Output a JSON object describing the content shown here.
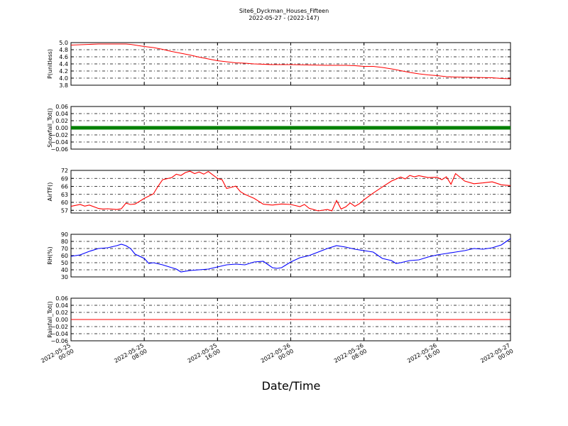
{
  "figure": {
    "title": "Site6_Dyckman_Houses_Fifteen",
    "subtitle": "2022-05-27 - (2022-147)",
    "xlabel": "Date/Time",
    "x_ticks": [
      {
        "line1": "2022-05-25",
        "line2": "00:00",
        "hour": 0
      },
      {
        "line1": "2022-05-25",
        "line2": "08:00",
        "hour": 8
      },
      {
        "line1": "2022-05-25",
        "line2": "16:00",
        "hour": 16
      },
      {
        "line1": "2022-05-26",
        "line2": "00:00",
        "hour": 24
      },
      {
        "line1": "2022-05-26",
        "line2": "08:00",
        "hour": 32
      },
      {
        "line1": "2022-05-26",
        "line2": "16:00",
        "hour": 40
      },
      {
        "line1": "2022-05-27",
        "line2": "00:00",
        "hour": 48
      }
    ]
  },
  "chart_data": [
    {
      "type": "line",
      "ylabel": "P(unitless)",
      "ylim": [
        3.8,
        5.0
      ],
      "yticks": [
        "3.8",
        "4.0",
        "4.2",
        "4.4",
        "4.6",
        "4.8",
        "5.0"
      ],
      "color": "#ff0000",
      "grid": true,
      "series": [
        {
          "x_hours": [
            0,
            2,
            3,
            4,
            5,
            6,
            6.5,
            7,
            7.5,
            8,
            9,
            10,
            11,
            12,
            13,
            14,
            15,
            16,
            17,
            18,
            19,
            20,
            22,
            24,
            26,
            28,
            30,
            31,
            32,
            33,
            34,
            35,
            36,
            37,
            38,
            39,
            40,
            41,
            42,
            44,
            46,
            47,
            48
          ],
          "values": [
            4.93,
            4.95,
            4.96,
            4.96,
            4.96,
            4.96,
            4.95,
            4.93,
            4.91,
            4.89,
            4.86,
            4.81,
            4.75,
            4.7,
            4.65,
            4.59,
            4.54,
            4.49,
            4.46,
            4.43,
            4.42,
            4.4,
            4.38,
            4.38,
            4.37,
            4.36,
            4.36,
            4.35,
            4.33,
            4.33,
            4.3,
            4.26,
            4.21,
            4.16,
            4.12,
            4.09,
            4.07,
            4.04,
            4.03,
            4.02,
            4.01,
            3.99,
            3.98
          ]
        }
      ]
    },
    {
      "type": "line",
      "ylabel": "Snowfall_Tot()",
      "ylim": [
        -0.06,
        0.06
      ],
      "yticks": [
        "−0.06",
        "−0.04",
        "−0.02",
        "0.00",
        "0.02",
        "0.04",
        "0.06"
      ],
      "color": "#008000",
      "markers": true,
      "grid": true,
      "series": [
        {
          "x_hours": [
            0,
            48
          ],
          "values": [
            0,
            0
          ]
        }
      ]
    },
    {
      "type": "line",
      "ylabel": "AirTF()",
      "ylim": [
        56,
        72
      ],
      "yticks": [
        "57",
        "60",
        "63",
        "66",
        "69",
        "72"
      ],
      "ytick_values": [
        57,
        60,
        63,
        66,
        69,
        72
      ],
      "color": "#ff0000",
      "grid": true,
      "series": [
        {
          "x_hours": [
            0,
            1,
            1.5,
            2,
            3,
            3.5,
            4,
            5,
            5.5,
            6,
            6.5,
            7,
            7.5,
            8,
            9,
            9.5,
            10,
            11,
            11.5,
            12,
            12.5,
            13,
            13.5,
            14,
            14.5,
            15,
            16,
            16.5,
            17,
            18,
            18.5,
            19,
            20,
            21,
            22,
            23,
            24,
            25,
            25.5,
            26,
            27,
            28,
            28.5,
            29,
            29.5,
            30,
            30.5,
            31,
            31.5,
            32,
            33,
            34,
            35,
            36,
            36.5,
            37,
            37.5,
            38,
            39,
            40,
            40.5,
            41,
            41.5,
            42,
            43,
            44,
            45,
            46,
            47,
            48
          ],
          "values": [
            58.5,
            59.2,
            58.6,
            59.0,
            57.7,
            57.5,
            57.6,
            57.3,
            57.6,
            59.7,
            59.2,
            59.4,
            60.4,
            61.5,
            63.2,
            66.0,
            68.5,
            69.3,
            70.6,
            70.1,
            71.2,
            71.7,
            70.8,
            71.4,
            70.6,
            71.6,
            69.0,
            68.5,
            65.2,
            66.1,
            64.0,
            63.0,
            61.5,
            59.3,
            59.0,
            59.4,
            59.2,
            58.4,
            59.2,
            57.8,
            56.8,
            57.3,
            56.8,
            60.7,
            57.5,
            58.3,
            59.8,
            58.5,
            59.5,
            61.0,
            63.5,
            65.8,
            68.0,
            69.5,
            68.8,
            70.1,
            69.6,
            70.0,
            69.3,
            69.4,
            68.5,
            69.6,
            66.8,
            70.8,
            68.0,
            67.0,
            67.3,
            67.7,
            66.6,
            66.3
          ]
        }
      ]
    },
    {
      "type": "line",
      "ylabel": "RH(%)",
      "ylim": [
        30,
        90
      ],
      "yticks": [
        "30",
        "40",
        "50",
        "60",
        "70",
        "80",
        "90"
      ],
      "color": "#0000ff",
      "grid": true,
      "series": [
        {
          "x_hours": [
            0,
            1,
            2,
            3,
            4,
            5,
            5.5,
            6,
            6.5,
            7,
            8,
            8.5,
            9,
            10,
            10.5,
            11,
            11.5,
            12,
            13,
            14,
            15,
            16,
            17,
            18,
            19,
            20,
            21,
            22,
            22.5,
            23,
            24,
            25,
            26,
            27,
            28,
            29,
            30,
            31,
            32,
            33,
            34,
            35,
            35.5,
            36,
            37,
            38,
            39,
            40,
            41,
            42,
            43,
            44,
            45,
            46,
            47,
            48
          ],
          "values": [
            59,
            61,
            66,
            70,
            71,
            74,
            76,
            74,
            70,
            62,
            56,
            49,
            50,
            47,
            45,
            43,
            41,
            37,
            39,
            40,
            41,
            44,
            47,
            48,
            47,
            51,
            52,
            43,
            42,
            43,
            51,
            57,
            60,
            65,
            70,
            74,
            72,
            69,
            67,
            65,
            56,
            53,
            49,
            50,
            53,
            54,
            58,
            61,
            63,
            65,
            67,
            70,
            69,
            71,
            75,
            84
          ]
        }
      ]
    },
    {
      "type": "line",
      "ylabel": "Rainfall_Tot()",
      "ylim": [
        -0.06,
        0.06
      ],
      "yticks": [
        "−0.06",
        "−0.04",
        "−0.02",
        "0.00",
        "0.02",
        "0.04",
        "0.06"
      ],
      "color": "#ff0000",
      "grid": true,
      "series": [
        {
          "x_hours": [
            0,
            48
          ],
          "values": [
            0,
            0
          ]
        }
      ]
    }
  ]
}
